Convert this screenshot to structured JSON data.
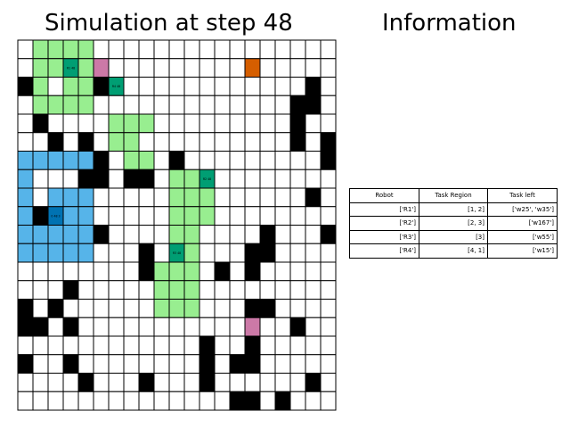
{
  "titles": {
    "simulation": "Simulation at step 48",
    "information": "Information"
  },
  "grid": {
    "cols": 21,
    "rows": 20,
    "colors": {
      "empty": "#ffffff",
      "obstacle": "#000000",
      "region": "#98ee90",
      "region_blue": "#56b4e9",
      "robot": "#009e73",
      "robot_blue": "#0072b2",
      "pink": "#cc79a7",
      "orange": "#d55e00",
      "line": "#000000"
    },
    "obstacles": [
      [
        2,
        0
      ],
      [
        14,
        15
      ],
      [
        14,
        16
      ],
      [
        2,
        19
      ],
      [
        3,
        19
      ],
      [
        3,
        18
      ],
      [
        4,
        18
      ],
      [
        5,
        18
      ],
      [
        5,
        20
      ],
      [
        6,
        20
      ],
      [
        6,
        10
      ],
      [
        8,
        19
      ],
      [
        10,
        20
      ],
      [
        10,
        16
      ],
      [
        11,
        16
      ],
      [
        11,
        15
      ],
      [
        12,
        15
      ],
      [
        13,
        3
      ],
      [
        18,
        8
      ],
      [
        18,
        12
      ],
      [
        17,
        12
      ],
      [
        16,
        12
      ],
      [
        17,
        14
      ],
      [
        17,
        15
      ],
      [
        18,
        4
      ],
      [
        19,
        15
      ],
      [
        19,
        14
      ],
      [
        20,
        14
      ],
      [
        15,
        0
      ],
      [
        15,
        1
      ],
      [
        16,
        15
      ],
      [
        19,
        17
      ],
      [
        20,
        17
      ],
      [
        11,
        8
      ],
      [
        12,
        8
      ],
      [
        12,
        10
      ],
      [
        12,
        13
      ],
      [
        10,
        11
      ],
      [
        13,
        11
      ],
      [
        15,
        18
      ],
      [
        18,
        19
      ],
      [
        5,
        2
      ],
      [
        5,
        4
      ],
      [
        7,
        4
      ],
      [
        9,
        1
      ],
      [
        3,
        1
      ],
      [
        6,
        7
      ],
      [
        7,
        7
      ],
      [
        7,
        8
      ],
      [
        10,
        5
      ],
      [
        14,
        0
      ],
      [
        14,
        2
      ],
      [
        17,
        0
      ],
      [
        6,
        5
      ],
      [
        7,
        5
      ],
      [
        4,
        7
      ],
      [
        5,
        7
      ],
      [
        6,
        8
      ],
      [
        2,
        5
      ],
      [
        4,
        1
      ],
      [
        20,
        1
      ],
      [
        20,
        2
      ],
      [
        15,
        3
      ],
      [
        17,
        3
      ]
    ],
    "regions": [
      {
        "cells": [
          [
            0,
            1
          ],
          [
            0,
            2
          ],
          [
            0,
            3
          ],
          [
            0,
            4
          ],
          [
            1,
            1
          ],
          [
            1,
            2
          ],
          [
            1,
            3
          ],
          [
            1,
            4
          ],
          [
            2,
            1
          ],
          [
            2,
            3
          ],
          [
            2,
            4
          ],
          [
            3,
            1
          ],
          [
            3,
            2
          ],
          [
            3,
            3
          ],
          [
            3,
            4
          ],
          [
            4,
            6
          ],
          [
            4,
            7
          ],
          [
            4,
            8
          ],
          [
            5,
            6
          ],
          [
            5,
            7
          ],
          [
            6,
            7
          ],
          [
            6,
            8
          ]
        ],
        "color": "region"
      },
      {
        "cells": [
          [
            7,
            10
          ],
          [
            7,
            11
          ],
          [
            7,
            12
          ],
          [
            8,
            10
          ],
          [
            8,
            11
          ],
          [
            8,
            12
          ],
          [
            9,
            10
          ],
          [
            9,
            11
          ],
          [
            9,
            12
          ],
          [
            10,
            10
          ],
          [
            10,
            11
          ],
          [
            11,
            10
          ],
          [
            11,
            11
          ],
          [
            12,
            9
          ],
          [
            12,
            10
          ],
          [
            12,
            11
          ],
          [
            13,
            9
          ],
          [
            13,
            10
          ],
          [
            13,
            11
          ],
          [
            14,
            9
          ],
          [
            14,
            10
          ],
          [
            14,
            11
          ]
        ],
        "color": "region"
      },
      {
        "cells": [
          [
            6,
            0
          ],
          [
            6,
            1
          ],
          [
            6,
            2
          ],
          [
            6,
            3
          ],
          [
            6,
            4
          ],
          [
            7,
            0
          ],
          [
            8,
            0
          ],
          [
            8,
            2
          ],
          [
            8,
            3
          ],
          [
            8,
            4
          ],
          [
            9,
            0
          ],
          [
            9,
            2
          ],
          [
            9,
            3
          ],
          [
            9,
            4
          ],
          [
            10,
            0
          ],
          [
            10,
            1
          ],
          [
            10,
            2
          ],
          [
            10,
            3
          ],
          [
            10,
            4
          ],
          [
            11,
            0
          ],
          [
            11,
            1
          ],
          [
            11,
            2
          ],
          [
            11,
            3
          ],
          [
            11,
            4
          ]
        ],
        "color": "region_blue"
      }
    ],
    "robots": [
      {
        "row": 1,
        "col": 3,
        "color": "robot",
        "label": "R1 48"
      },
      {
        "row": 2,
        "col": 6,
        "color": "robot",
        "label": "R4 48"
      },
      {
        "row": 7,
        "col": 12,
        "color": "robot",
        "label": "R2 48"
      },
      {
        "row": 9,
        "col": 2,
        "color": "robot_blue",
        "label": "0 48 3"
      },
      {
        "row": 11,
        "col": 10,
        "color": "robot",
        "label": "R3 48"
      }
    ],
    "specials": [
      {
        "row": 1,
        "col": 5,
        "color": "pink"
      },
      {
        "row": 15,
        "col": 15,
        "color": "pink"
      },
      {
        "row": 1,
        "col": 15,
        "color": "orange"
      }
    ]
  },
  "info_table": {
    "headers": [
      "Robot",
      "Task Region",
      "Task left"
    ],
    "rows": [
      [
        "['R1']",
        "[1, 2]",
        "['w25', 'w35']"
      ],
      [
        "['R2']",
        "[2, 3]",
        "['w167']"
      ],
      [
        "['R3']",
        "[3]",
        "['w55']"
      ],
      [
        "['R4']",
        "[4, 1]",
        "['w15']"
      ]
    ]
  }
}
